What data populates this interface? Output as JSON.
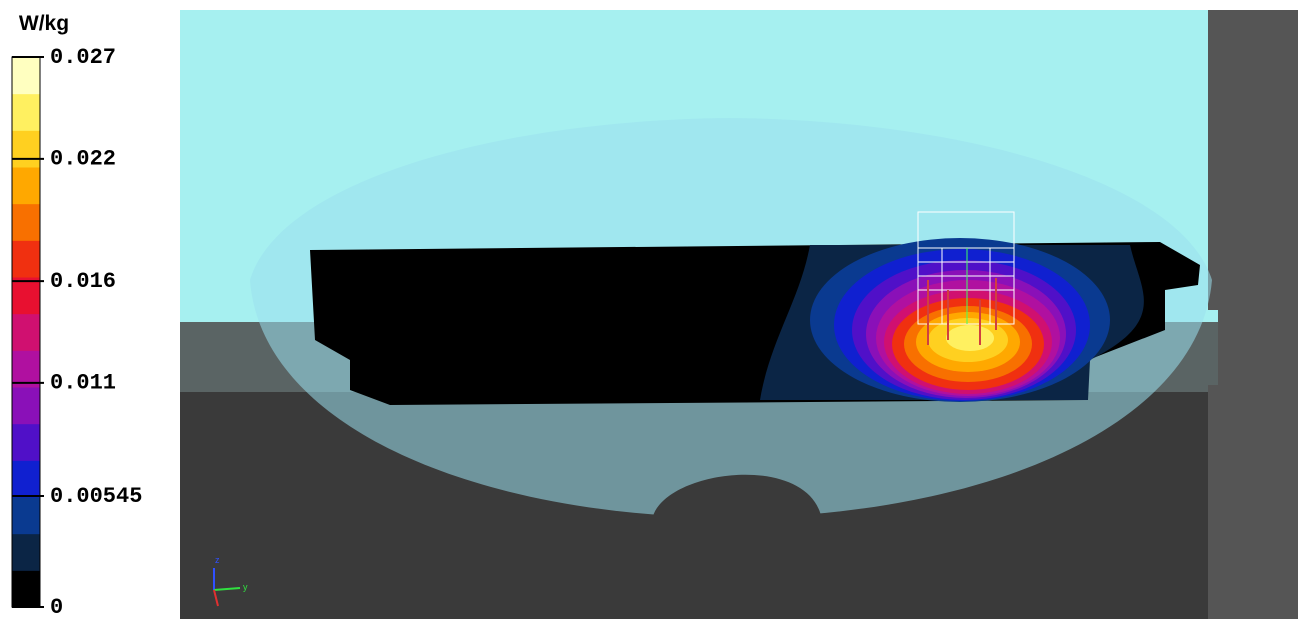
{
  "legend": {
    "unit": "W/kg",
    "ylim": [
      0,
      0.027
    ],
    "yticks": [
      0,
      0.00545,
      0.011,
      0.016,
      0.022,
      0.027
    ],
    "colors": [
      "#000000",
      "#0b2545",
      "#0a3a90",
      "#1020d0",
      "#5010c8",
      "#8a10b8",
      "#b010a0",
      "#d01070",
      "#e81030",
      "#f03010",
      "#f87000",
      "#ffa800",
      "#ffd020",
      "#fff060",
      "#ffffc0"
    ]
  },
  "triad": {
    "z": "z",
    "y": "y"
  }
}
